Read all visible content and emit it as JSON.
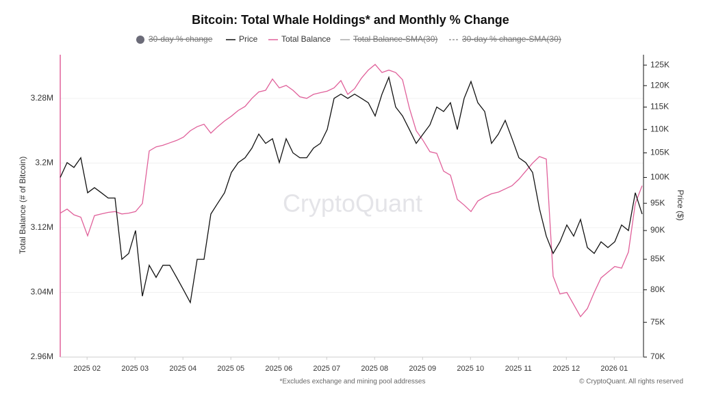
{
  "chart_data": {
    "type": "line",
    "title": "Bitcoin: Total Whale Holdings* and Monthly % Change",
    "ylabel": "Total Balance (# of Bitcoin)",
    "y2label": "Price ($)",
    "footnote": "*Excludes exchange and mining pool addresses",
    "copyright": "© CryptoQuant. All rights reserved",
    "watermark": "CryptoQuant",
    "xtick_labels": [
      "2025 02",
      "2025 03",
      "2025 04",
      "2025 05",
      "2025 06",
      "2025 07",
      "2025 08",
      "2025 09",
      "2025 10",
      "2025 11",
      "2025 12",
      "2026 01"
    ],
    "ylim": [
      2960000,
      3334000
    ],
    "yticks": [
      {
        "value": 2960000,
        "label": "2.96M"
      },
      {
        "value": 3040000,
        "label": "3.04M"
      },
      {
        "value": 3120000,
        "label": "3.12M"
      },
      {
        "value": 3200000,
        "label": "3.2M"
      },
      {
        "value": 3280000,
        "label": "3.28M"
      }
    ],
    "y2lim": [
      70000,
      127600
    ],
    "y2log": true,
    "y2ticks": [
      {
        "value": 70000,
        "label": "70K"
      },
      {
        "value": 75000,
        "label": "75K"
      },
      {
        "value": 80000,
        "label": "80K"
      },
      {
        "value": 85000,
        "label": "85K"
      },
      {
        "value": 90000,
        "label": "90K"
      },
      {
        "value": 95000,
        "label": "95K"
      },
      {
        "value": 100000,
        "label": "100K"
      },
      {
        "value": 105000,
        "label": "105K"
      },
      {
        "value": 110000,
        "label": "110K"
      },
      {
        "value": 115000,
        "label": "115K"
      },
      {
        "value": 120000,
        "label": "120K"
      },
      {
        "value": 125000,
        "label": "125K"
      }
    ],
    "series": [
      {
        "name": "30-day % change",
        "color": "#6b6b78",
        "visible": false,
        "marker": "circle"
      },
      {
        "name": "Price",
        "color": "#111111",
        "axis": "y2",
        "visible": true,
        "values": [
          100000,
          103000,
          102000,
          104000,
          97000,
          98000,
          97000,
          96000,
          96000,
          85000,
          86000,
          90000,
          79000,
          84000,
          82000,
          84000,
          84000,
          82000,
          80000,
          78000,
          85000,
          85000,
          93000,
          95000,
          97000,
          101000,
          103000,
          104000,
          106000,
          109000,
          107000,
          108000,
          103000,
          108000,
          105000,
          104000,
          104000,
          106000,
          107000,
          110000,
          117000,
          118000,
          117000,
          118000,
          117000,
          116000,
          113000,
          118000,
          122000,
          115000,
          113000,
          110000,
          107000,
          109000,
          111000,
          115000,
          114000,
          116000,
          110000,
          117000,
          121000,
          116000,
          114000,
          107000,
          109000,
          112000,
          108000,
          104000,
          103000,
          101000,
          94000,
          89000,
          86000,
          88000,
          91000,
          89000,
          92000,
          87000,
          86000,
          88000,
          87000,
          88000,
          91000,
          90000,
          97000,
          93000
        ]
      },
      {
        "name": "Total Balance",
        "color": "#e0609a",
        "visible": true,
        "values": [
          3138000,
          3143000,
          3136000,
          3133000,
          3110000,
          3135000,
          3137000,
          3139000,
          3140000,
          3137000,
          3138000,
          3140000,
          3150000,
          3215000,
          3220000,
          3222000,
          3225000,
          3228000,
          3232000,
          3240000,
          3245000,
          3248000,
          3237000,
          3245000,
          3252000,
          3258000,
          3265000,
          3270000,
          3280000,
          3288000,
          3290000,
          3304000,
          3293000,
          3296000,
          3290000,
          3282000,
          3280000,
          3285000,
          3287000,
          3289000,
          3293000,
          3302000,
          3285000,
          3292000,
          3305000,
          3315000,
          3322000,
          3312000,
          3315000,
          3312000,
          3303000,
          3268000,
          3240000,
          3228000,
          3214000,
          3212000,
          3190000,
          3185000,
          3155000,
          3148000,
          3140000,
          3153000,
          3158000,
          3162000,
          3164000,
          3168000,
          3172000,
          3180000,
          3190000,
          3200000,
          3208000,
          3205000,
          3060000,
          3038000,
          3040000,
          3025000,
          3010000,
          3020000,
          3040000,
          3058000,
          3065000,
          3072000,
          3070000,
          3090000,
          3150000,
          3172000
        ]
      },
      {
        "name": "Total Balance-SMA(30)",
        "color": "#aaaaaa",
        "visible": false,
        "marker": "line"
      },
      {
        "name": "30-day % change-SMA(30)",
        "color": "#666666",
        "visible": false,
        "marker": "dash"
      }
    ]
  }
}
